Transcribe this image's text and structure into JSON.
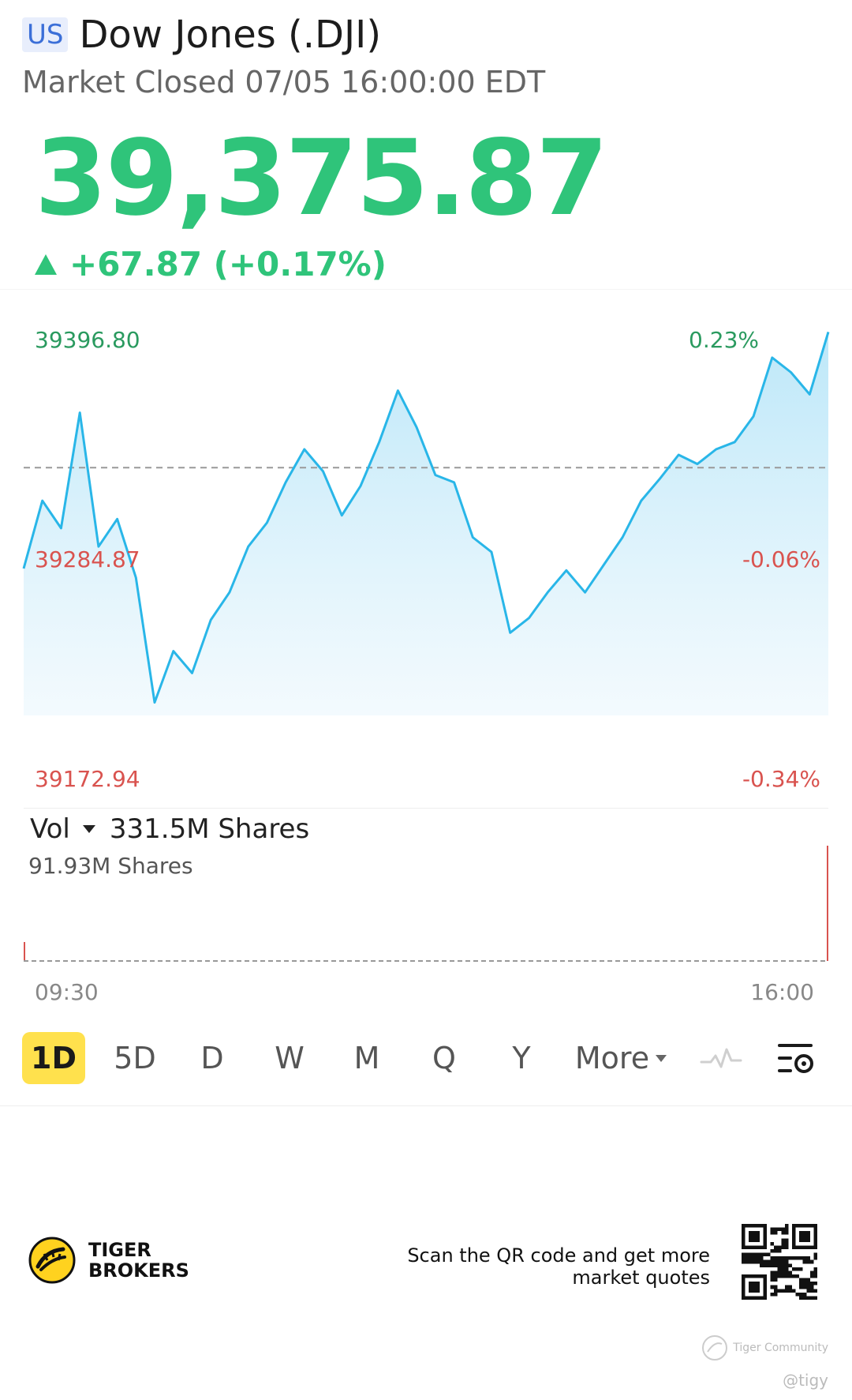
{
  "header": {
    "market_badge": "US",
    "title": "Dow Jones (.DJI)",
    "status": "Market Closed 07/05 16:00:00 EDT"
  },
  "quote": {
    "price": "39,375.87",
    "change": "+67.87 (+0.17%)",
    "change_color": "#2fc47a"
  },
  "chart": {
    "price_high_label": "39396.80",
    "price_mid_label": "39284.87",
    "price_low_label": "39172.94",
    "pct_high_label": "0.23%",
    "pct_mid_label": "-0.06%",
    "pct_low_label": "-0.34%",
    "line_color": "#29b6e8",
    "up_color": "#2a9a5f",
    "down_color": "#d9534f"
  },
  "volume": {
    "selector_label": "Vol",
    "total": "331.5M Shares",
    "max_label": "91.93M Shares"
  },
  "time_axis": {
    "start": "09:30",
    "end": "16:00"
  },
  "periods": {
    "items": [
      "1D",
      "5D",
      "D",
      "W",
      "M",
      "Q",
      "Y"
    ],
    "active": "1D",
    "more_label": "More"
  },
  "icons": {
    "indicator": "pulse-line-icon",
    "settings": "chart-settings-icon",
    "logo": "tiger-logo-icon",
    "qr": "qr-code-icon"
  },
  "footer": {
    "brand_line1": "TIGER",
    "brand_line2": "BROKERS",
    "qr_text": "Scan the QR code and get more market quotes",
    "watermark_primary": "Tiger Community",
    "watermark_secondary": "@tigy"
  },
  "chart_data": {
    "type": "line",
    "title": "",
    "xlabel": "",
    "ylabel": "",
    "x_range": [
      "09:30",
      "16:00"
    ],
    "ylim": [
      39172.94,
      39396.8
    ],
    "previous_close": 39308.0,
    "x": [
      "09:30",
      "09:35",
      "09:40",
      "09:45",
      "09:50",
      "09:55",
      "10:00",
      "10:10",
      "10:20",
      "10:30",
      "10:40",
      "10:50",
      "11:00",
      "11:10",
      "11:20",
      "11:30",
      "11:40",
      "11:50",
      "12:00",
      "12:10",
      "12:20",
      "12:30",
      "12:40",
      "12:50",
      "13:00",
      "13:10",
      "13:20",
      "13:30",
      "13:40",
      "13:50",
      "14:00",
      "14:10",
      "14:20",
      "14:30",
      "14:40",
      "14:50",
      "15:00",
      "15:10",
      "15:20",
      "15:30",
      "15:40",
      "15:50",
      "15:55",
      "16:00"
    ],
    "series": [
      {
        "values": [
          39253,
          39290,
          39275,
          39338,
          39265,
          39280,
          39248,
          39180,
          39208,
          39196,
          39225,
          39240,
          39265,
          39278,
          39300,
          39318,
          39306,
          39282,
          39298,
          39322,
          39350,
          39330,
          39304,
          39300,
          39270,
          39262,
          39218,
          39226,
          39240,
          39252,
          39240,
          39255,
          39270,
          39290,
          39302,
          39315,
          39310,
          39318,
          39322,
          39336,
          39368,
          39360,
          39348,
          39382
        ]
      }
    ],
    "grid": false,
    "legend": "none"
  },
  "volume_data": {
    "type": "bar",
    "max": "91.93M Shares",
    "total": "331.5M Shares"
  }
}
